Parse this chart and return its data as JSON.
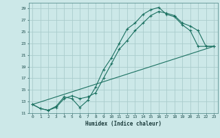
{
  "bg_color": "#cce8e8",
  "grid_color": "#aacccc",
  "line_color": "#1a7060",
  "xlabel": "Humidex (Indice chaleur)",
  "xlim": [
    -0.5,
    23.5
  ],
  "ylim": [
    11,
    30
  ],
  "yticks": [
    11,
    13,
    15,
    17,
    19,
    21,
    23,
    25,
    27,
    29
  ],
  "xticks": [
    0,
    1,
    2,
    3,
    4,
    5,
    6,
    7,
    8,
    9,
    10,
    11,
    12,
    13,
    14,
    15,
    16,
    17,
    18,
    19,
    20,
    21,
    22,
    23
  ],
  "line1_x": [
    0,
    1,
    2,
    3,
    4,
    5,
    6,
    7,
    8,
    9,
    10,
    11,
    12,
    13,
    14,
    15,
    16,
    17,
    18,
    19,
    20,
    21,
    22,
    23
  ],
  "line1_y": [
    12.5,
    11.8,
    11.5,
    12.2,
    13.8,
    13.5,
    12.0,
    13.2,
    15.5,
    18.5,
    20.5,
    23.0,
    25.5,
    26.5,
    28.0,
    28.8,
    29.2,
    28.0,
    27.6,
    26.2,
    25.2,
    22.5,
    22.5,
    22.5
  ],
  "line2_x": [
    0,
    1,
    2,
    3,
    4,
    5,
    6,
    7,
    8,
    9,
    10,
    11,
    12,
    13,
    14,
    15,
    16,
    17,
    18,
    19,
    20,
    21,
    22,
    23
  ],
  "line2_y": [
    12.5,
    11.8,
    11.5,
    12.0,
    13.5,
    14.0,
    13.5,
    13.8,
    14.5,
    17.0,
    19.5,
    22.0,
    23.5,
    25.2,
    26.5,
    27.8,
    28.5,
    28.2,
    27.8,
    26.5,
    26.0,
    25.2,
    22.5,
    22.5
  ],
  "line3_x": [
    0,
    23
  ],
  "line3_y": [
    12.5,
    22.5
  ]
}
